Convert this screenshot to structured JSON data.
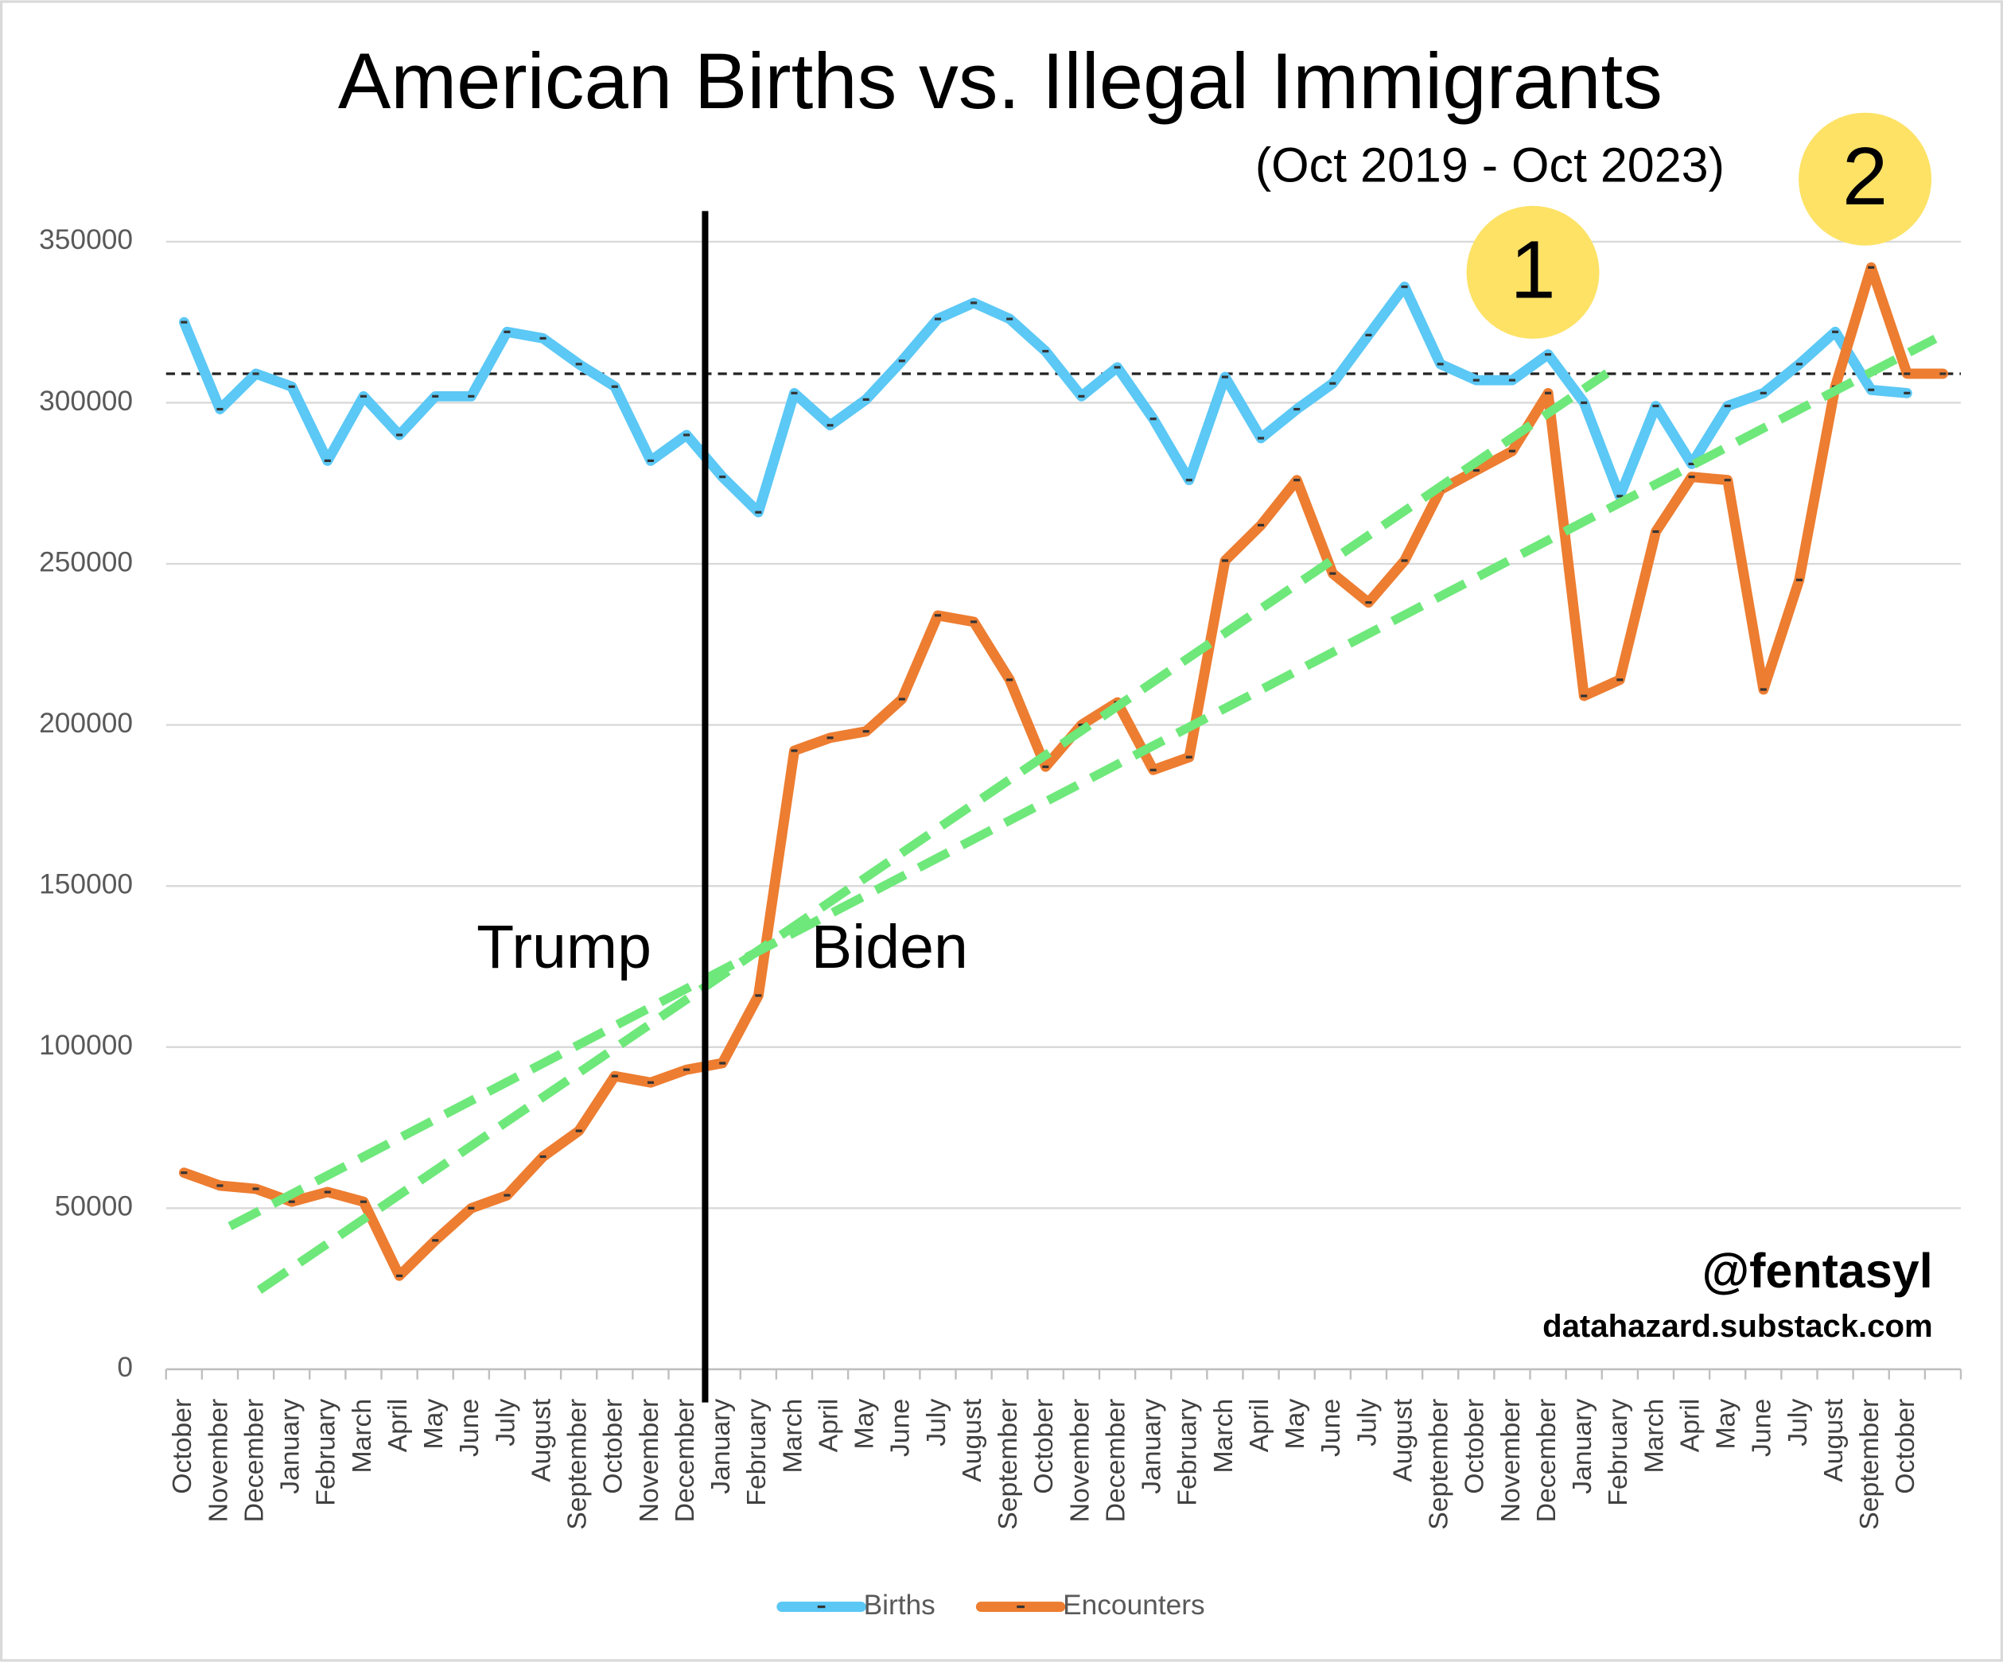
{
  "chart_data": {
    "type": "line",
    "title": "American Births vs. Illegal Immigrants",
    "subtitle": "(Oct 2019 - Oct 2023)",
    "categories": [
      "October",
      "November",
      "December",
      "January",
      "February",
      "March",
      "April",
      "May",
      "June",
      "July",
      "August",
      "September",
      "October",
      "November",
      "December",
      "January",
      "February",
      "March",
      "April",
      "May",
      "June",
      "July",
      "August",
      "September",
      "October",
      "November",
      "December",
      "January",
      "February",
      "March",
      "April",
      "May",
      "June",
      "July",
      "August",
      "September",
      "October",
      "November",
      "December",
      "January",
      "February",
      "March",
      "April",
      "May",
      "June",
      "July",
      "August",
      "September",
      "October",
      null
    ],
    "series": [
      {
        "name": "Births",
        "color": "#5bc8f5",
        "values": [
          325000,
          298000,
          309000,
          305000,
          282000,
          302000,
          290000,
          302000,
          302000,
          322000,
          320000,
          312000,
          305000,
          282000,
          290000,
          277000,
          266000,
          303000,
          293000,
          301000,
          313000,
          326000,
          331000,
          326000,
          316000,
          302000,
          311000,
          295000,
          276000,
          308000,
          289000,
          298000,
          306000,
          321000,
          336000,
          312000,
          307000,
          307000,
          315000,
          300000,
          271000,
          299000,
          281000,
          299000,
          303000,
          312000,
          322000,
          304000,
          303000,
          null
        ]
      },
      {
        "name": "Encounters",
        "color": "#ed7d31",
        "values": [
          61000,
          57000,
          56000,
          52000,
          55000,
          52000,
          29000,
          40000,
          50000,
          54000,
          66000,
          74000,
          91000,
          89000,
          93000,
          95000,
          116000,
          192000,
          196000,
          198000,
          208000,
          234000,
          232000,
          214000,
          187000,
          200000,
          207000,
          186000,
          190000,
          251000,
          262000,
          276000,
          247000,
          238000,
          251000,
          273000,
          279000,
          285000,
          303000,
          209000,
          214000,
          260000,
          277000,
          276000,
          211000,
          245000,
          305000,
          342000,
          309000,
          309000
        ]
      }
    ],
    "ylim": [
      0,
      350000
    ],
    "yticks": [
      0,
      50000,
      100000,
      150000,
      200000,
      250000,
      300000,
      350000
    ],
    "grid": true,
    "legend": "bottom",
    "reference_line": 309000,
    "annotations": {
      "left_label": "Trump",
      "right_label": "Biden",
      "marker_1": "1",
      "marker_2": "2",
      "handle": "@fentasyl",
      "site": "datahazard.substack.com"
    }
  }
}
